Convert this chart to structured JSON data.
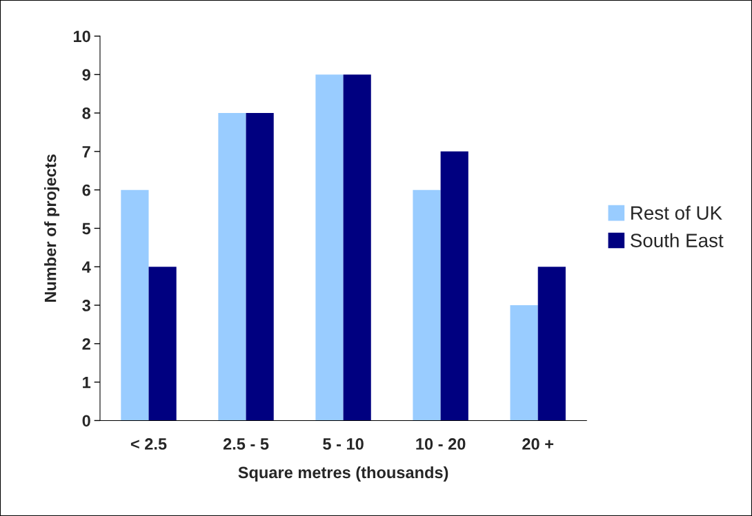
{
  "chart_data": {
    "type": "bar",
    "xlabel": "Square metres (thousands)",
    "ylabel": "Number of projects",
    "categories": [
      "< 2.5",
      "2.5 - 5",
      "5 - 10",
      "10 - 20",
      "20 +"
    ],
    "series": [
      {
        "name": "Rest of UK",
        "color": "#99ccff",
        "values": [
          6,
          8,
          9,
          6,
          3
        ]
      },
      {
        "name": "South East",
        "color": "#000080",
        "values": [
          4,
          8,
          9,
          7,
          4
        ]
      }
    ],
    "ylim": [
      0,
      10
    ],
    "yticks": [
      0,
      1,
      2,
      3,
      4,
      5,
      6,
      7,
      8,
      9,
      10
    ],
    "grid": false,
    "legend": "right"
  }
}
